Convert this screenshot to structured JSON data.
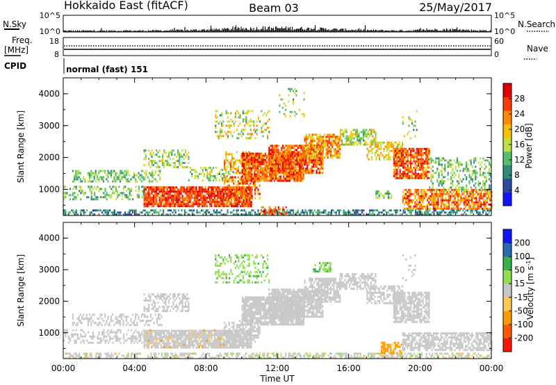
{
  "header": {
    "station": "Hokkaido East (fitACF)",
    "beam": "Beam 03",
    "date": "25/May/2017"
  },
  "status_panels": {
    "nsky_label": "N.Sky",
    "nsky_ticks": [
      "10^5",
      "10^0"
    ],
    "nsearch_label": "N.Search",
    "nsearch_ticks": [
      "10^5",
      "10^0"
    ],
    "freq_label_1": "Freq.",
    "freq_label_2": "[MHz]",
    "freq_ticks": [
      "18",
      "8"
    ],
    "nave_label": "Nave",
    "nave_ticks": [
      "60",
      "0"
    ],
    "cpid_label": "CPID",
    "cpid_value": "normal (fast) 151"
  },
  "colors": {
    "power_scale": [
      "#1414ff",
      "#2a4da0",
      "#2f8c7a",
      "#55c06a",
      "#c0e040",
      "#f7c200",
      "#ff8a00",
      "#ff3a00",
      "#e00000"
    ],
    "velocity_scale": [
      "#ff1400",
      "#ff5a00",
      "#ff9b00",
      "#ffc95a",
      "#c8c8c8",
      "#8fe050",
      "#3ab04a",
      "#2a6ab0",
      "#1414ff"
    ]
  },
  "chart_data": [
    {
      "type": "heatmap",
      "name": "power",
      "ylabel": "Slant Range [km]",
      "xlabel": "Time UT",
      "x_ticks": [
        "00:00",
        "04:00",
        "08:00",
        "12:00",
        "16:00",
        "20:00",
        "00:00"
      ],
      "x_range_hours": [
        0,
        24
      ],
      "y_ticks": [
        "1000",
        "2000",
        "3000",
        "4000"
      ],
      "y_range_km": [
        180,
        4500
      ],
      "colorbar_label": "Power [dB]",
      "colorbar_ticks": [
        "4",
        "8",
        "12",
        "16",
        "20",
        "24",
        "28"
      ],
      "colorbar_range": [
        0,
        32
      ],
      "features": [
        {
          "t0": 0.0,
          "t1": 24.0,
          "r0": 180,
          "r1": 350,
          "dens": 0.55,
          "v0": 4,
          "v1": 14
        },
        {
          "t0": 4.5,
          "t1": 10.5,
          "r0": 480,
          "r1": 1080,
          "dens": 0.9,
          "v0": 22,
          "v1": 31
        },
        {
          "t0": 0.0,
          "t1": 4.5,
          "r0": 650,
          "r1": 1100,
          "dens": 0.35,
          "v0": 8,
          "v1": 18
        },
        {
          "t0": 0.5,
          "t1": 5.5,
          "r0": 1250,
          "r1": 1600,
          "dens": 0.45,
          "v0": 9,
          "v1": 18
        },
        {
          "t0": 4.5,
          "t1": 7.0,
          "r0": 1700,
          "r1": 2250,
          "dens": 0.45,
          "v0": 10,
          "v1": 20
        },
        {
          "t0": 7.0,
          "t1": 9.5,
          "r0": 1300,
          "r1": 1700,
          "dens": 0.35,
          "v0": 10,
          "v1": 20
        },
        {
          "t0": 9.0,
          "t1": 10.5,
          "r0": 1500,
          "r1": 2200,
          "dens": 0.45,
          "v0": 14,
          "v1": 26
        },
        {
          "t0": 9.0,
          "t1": 11.0,
          "r0": 700,
          "r1": 1400,
          "dens": 0.5,
          "v0": 18,
          "v1": 30
        },
        {
          "t0": 10.0,
          "t1": 13.5,
          "r0": 1250,
          "r1": 2150,
          "dens": 0.85,
          "v0": 20,
          "v1": 31
        },
        {
          "t0": 11.5,
          "t1": 14.5,
          "r0": 1500,
          "r1": 2400,
          "dens": 0.8,
          "v0": 20,
          "v1": 31
        },
        {
          "t0": 13.5,
          "t1": 15.5,
          "r0": 2000,
          "r1": 2750,
          "dens": 0.75,
          "v0": 16,
          "v1": 28
        },
        {
          "t0": 15.5,
          "t1": 17.5,
          "r0": 2400,
          "r1": 2900,
          "dens": 0.65,
          "v0": 10,
          "v1": 22
        },
        {
          "t0": 17.0,
          "t1": 19.0,
          "r0": 1950,
          "r1": 2500,
          "dens": 0.55,
          "v0": 14,
          "v1": 24
        },
        {
          "t0": 18.5,
          "t1": 20.5,
          "r0": 1350,
          "r1": 2300,
          "dens": 0.8,
          "v0": 20,
          "v1": 31
        },
        {
          "t0": 19.0,
          "t1": 24.0,
          "r0": 400,
          "r1": 1000,
          "dens": 0.7,
          "v0": 18,
          "v1": 30
        },
        {
          "t0": 20.5,
          "t1": 24.0,
          "r0": 900,
          "r1": 2000,
          "dens": 0.35,
          "v0": 8,
          "v1": 18
        },
        {
          "t0": 8.5,
          "t1": 11.5,
          "r0": 2600,
          "r1": 3500,
          "dens": 0.3,
          "v0": 10,
          "v1": 24
        },
        {
          "t0": 12.0,
          "t1": 13.5,
          "r0": 3300,
          "r1": 4200,
          "dens": 0.15,
          "v0": 10,
          "v1": 20
        },
        {
          "t0": 17.5,
          "t1": 18.5,
          "r0": 700,
          "r1": 950,
          "dens": 0.5,
          "v0": 8,
          "v1": 18
        },
        {
          "t0": 11.0,
          "t1": 12.5,
          "r0": 200,
          "r1": 450,
          "dens": 0.55,
          "v0": 22,
          "v1": 30
        },
        {
          "t0": 19.0,
          "t1": 19.8,
          "r0": 2600,
          "r1": 3500,
          "dens": 0.12,
          "v0": 10,
          "v1": 20
        }
      ]
    },
    {
      "type": "heatmap",
      "name": "velocity",
      "ylabel": "Slant Range [km]",
      "xlabel": "Time UT",
      "x_ticks": [
        "00:00",
        "04:00",
        "08:00",
        "12:00",
        "16:00",
        "20:00",
        "00:00"
      ],
      "x_range_hours": [
        0,
        24
      ],
      "y_ticks": [
        "1000",
        "2000",
        "3000",
        "4000"
      ],
      "y_range_km": [
        180,
        4500
      ],
      "colorbar_label": "Velocity [m s",
      "colorbar_label_sup": "-1",
      "colorbar_label_end": "]",
      "colorbar_ticks": [
        "-200",
        "-100",
        "-50",
        "-15",
        "15",
        "50",
        "100",
        "200"
      ],
      "colorbar_range": [
        -250,
        250
      ],
      "features": [
        {
          "t0": 0.0,
          "t1": 24.0,
          "r0": 180,
          "r1": 350,
          "dens": 0.55,
          "v0": -20,
          "v1": 20
        },
        {
          "t0": 4.5,
          "t1": 10.5,
          "r0": 480,
          "r1": 1080,
          "dens": 0.85,
          "v0": -14,
          "v1": 14
        },
        {
          "t0": 0.0,
          "t1": 4.5,
          "r0": 650,
          "r1": 1100,
          "dens": 0.4,
          "v0": -14,
          "v1": 14
        },
        {
          "t0": 0.5,
          "t1": 5.5,
          "r0": 1250,
          "r1": 1600,
          "dens": 0.4,
          "v0": -14,
          "v1": 14
        },
        {
          "t0": 4.5,
          "t1": 7.0,
          "r0": 1700,
          "r1": 2250,
          "dens": 0.45,
          "v0": -14,
          "v1": 14
        },
        {
          "t0": 9.0,
          "t1": 11.0,
          "r0": 700,
          "r1": 1400,
          "dens": 0.5,
          "v0": -14,
          "v1": 14
        },
        {
          "t0": 10.0,
          "t1": 13.5,
          "r0": 1250,
          "r1": 2150,
          "dens": 0.85,
          "v0": -14,
          "v1": 14
        },
        {
          "t0": 11.5,
          "t1": 14.5,
          "r0": 1500,
          "r1": 2400,
          "dens": 0.8,
          "v0": -14,
          "v1": 14
        },
        {
          "t0": 13.5,
          "t1": 15.5,
          "r0": 2000,
          "r1": 2750,
          "dens": 0.75,
          "v0": -14,
          "v1": 14
        },
        {
          "t0": 15.5,
          "t1": 17.5,
          "r0": 2400,
          "r1": 2900,
          "dens": 0.65,
          "v0": -14,
          "v1": 14
        },
        {
          "t0": 17.0,
          "t1": 19.0,
          "r0": 1950,
          "r1": 2500,
          "dens": 0.55,
          "v0": -14,
          "v1": 14
        },
        {
          "t0": 18.5,
          "t1": 20.5,
          "r0": 1350,
          "r1": 2300,
          "dens": 0.8,
          "v0": -14,
          "v1": 14
        },
        {
          "t0": 19.0,
          "t1": 24.0,
          "r0": 400,
          "r1": 1000,
          "dens": 0.7,
          "v0": -14,
          "v1": 14
        },
        {
          "t0": 8.5,
          "t1": 11.5,
          "r0": 2600,
          "r1": 3500,
          "dens": 0.3,
          "v0": 16,
          "v1": 60
        },
        {
          "t0": 14.0,
          "t1": 15.0,
          "r0": 2950,
          "r1": 3250,
          "dens": 0.5,
          "v0": 20,
          "v1": 60
        },
        {
          "t0": 17.8,
          "t1": 19.0,
          "r0": 300,
          "r1": 700,
          "dens": 0.7,
          "v0": -90,
          "v1": -40
        },
        {
          "t0": 4.5,
          "t1": 9.0,
          "r0": 500,
          "r1": 1100,
          "dens": 0.1,
          "v0": -60,
          "v1": -20
        },
        {
          "t0": 19.0,
          "t1": 19.8,
          "r0": 2600,
          "r1": 3500,
          "dens": 0.1,
          "v0": -14,
          "v1": 14
        }
      ]
    }
  ]
}
